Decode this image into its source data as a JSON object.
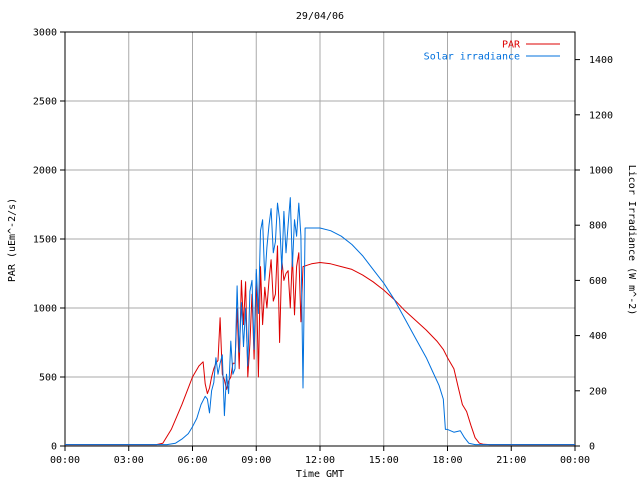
{
  "chart_data": {
    "type": "line",
    "title": "29/04/06",
    "xlabel": "Time GMT",
    "ylabel_left": "PAR (uEm^-2/s)",
    "ylabel_right": "Licor Irradiance (W m^-2)",
    "x_unit": "hours GMT",
    "xlim": [
      0,
      24
    ],
    "ylim_left": [
      0,
      3000
    ],
    "ylim_right": [
      0,
      1500
    ],
    "grid": true,
    "legend_position": "top-right",
    "x_ticks": [
      0,
      3,
      6,
      9,
      12,
      15,
      18,
      21,
      24
    ],
    "x_tick_labels": [
      "00:00",
      "03:00",
      "06:00",
      "09:00",
      "12:00",
      "15:00",
      "18:00",
      "21:00",
      "00:00"
    ],
    "y_left_ticks": [
      0,
      500,
      1000,
      1500,
      2000,
      2500,
      3000
    ],
    "y_left_tick_labels": [
      "0",
      "500",
      "1000",
      "1500",
      "2000",
      "2500",
      "3000"
    ],
    "y_right_ticks": [
      0,
      200,
      400,
      600,
      800,
      1000,
      1200,
      1400
    ],
    "y_right_tick_labels": [
      "0",
      "200",
      "400",
      "600",
      "800",
      "1000",
      "1200",
      "1400"
    ],
    "series": [
      {
        "name": "PAR",
        "axis": "left",
        "color": "#dd0000",
        "x": [
          0,
          4.3,
          4.6,
          5.0,
          5.5,
          6.0,
          6.3,
          6.5,
          6.6,
          6.7,
          6.8,
          6.9,
          7.0,
          7.1,
          7.2,
          7.3,
          7.4,
          7.5,
          7.6,
          7.7,
          7.8,
          7.9,
          8.0,
          8.1,
          8.2,
          8.3,
          8.4,
          8.5,
          8.6,
          8.7,
          8.8,
          8.9,
          9.0,
          9.1,
          9.2,
          9.3,
          9.4,
          9.5,
          9.6,
          9.7,
          9.8,
          9.9,
          10.0,
          10.1,
          10.2,
          10.3,
          10.4,
          10.5,
          10.6,
          10.7,
          10.8,
          10.9,
          11.0,
          11.1,
          11.2,
          11.4,
          11.6,
          12.0,
          12.5,
          13.0,
          13.5,
          14.0,
          14.5,
          15.0,
          15.5,
          16.0,
          16.5,
          17.0,
          17.5,
          17.8,
          18.0,
          18.3,
          18.5,
          18.7,
          18.9,
          19.1,
          19.3,
          19.5,
          19.7,
          20.0,
          24
        ],
        "values": [
          10,
          10,
          20,
          120,
          300,
          500,
          580,
          610,
          450,
          380,
          420,
          500,
          560,
          600,
          620,
          930,
          520,
          480,
          410,
          470,
          500,
          600,
          600,
          1000,
          560,
          1200,
          880,
          1190,
          500,
          740,
          1100,
          630,
          1250,
          500,
          1300,
          880,
          1150,
          1000,
          1200,
          1350,
          1050,
          1100,
          1450,
          750,
          1350,
          1200,
          1250,
          1270,
          1000,
          1380,
          950,
          1300,
          1400,
          900,
          1300,
          1310,
          1320,
          1330,
          1320,
          1300,
          1280,
          1240,
          1190,
          1130,
          1060,
          980,
          910,
          840,
          760,
          700,
          640,
          560,
          430,
          300,
          250,
          150,
          60,
          20,
          12,
          10,
          10
        ]
      },
      {
        "name": "Solar irradiance",
        "axis": "right",
        "color": "#0070dd",
        "x": [
          0,
          4.8,
          5.2,
          5.5,
          5.8,
          6.0,
          6.2,
          6.4,
          6.6,
          6.7,
          6.8,
          6.9,
          7.0,
          7.1,
          7.2,
          7.3,
          7.4,
          7.5,
          7.6,
          7.7,
          7.8,
          7.9,
          8.0,
          8.1,
          8.2,
          8.3,
          8.4,
          8.5,
          8.6,
          8.7,
          8.8,
          8.9,
          9.0,
          9.1,
          9.2,
          9.3,
          9.4,
          9.5,
          9.6,
          9.7,
          9.8,
          9.9,
          10.0,
          10.1,
          10.2,
          10.3,
          10.4,
          10.5,
          10.6,
          10.7,
          10.8,
          10.9,
          11.0,
          11.1,
          11.2,
          11.3,
          11.4,
          11.6,
          12.0,
          12.5,
          13.0,
          13.5,
          14.0,
          14.5,
          15.0,
          15.5,
          16.0,
          16.5,
          17.0,
          17.3,
          17.6,
          17.8,
          17.9,
          18.0,
          18.3,
          18.6,
          18.8,
          19.0,
          19.3,
          19.6,
          24
        ],
        "values": [
          5,
          5,
          10,
          25,
          45,
          70,
          100,
          150,
          180,
          170,
          120,
          200,
          230,
          320,
          260,
          300,
          330,
          110,
          260,
          190,
          380,
          260,
          280,
          580,
          340,
          520,
          360,
          500,
          290,
          560,
          600,
          350,
          640,
          480,
          780,
          820,
          600,
          720,
          800,
          860,
          700,
          740,
          880,
          820,
          640,
          850,
          700,
          800,
          900,
          650,
          820,
          760,
          880,
          760,
          210,
          790,
          790,
          790,
          790,
          780,
          760,
          730,
          690,
          640,
          590,
          530,
          460,
          390,
          320,
          270,
          220,
          170,
          60,
          60,
          50,
          55,
          30,
          10,
          5,
          5,
          5
        ]
      }
    ]
  }
}
